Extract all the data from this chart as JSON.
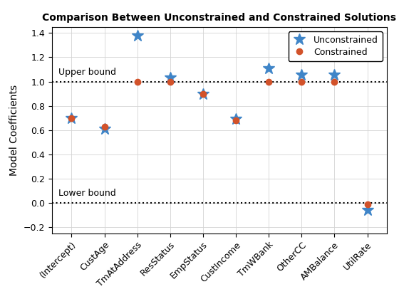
{
  "title": "Comparison Between Unconstrained and Constrained Solutions",
  "ylabel": "Model Coefficients",
  "categories": [
    "(Intercept)",
    "CustAge",
    "TmAtAddress",
    "ResStatus",
    "EmpStatus",
    "CustIncome",
    "TmWBank",
    "OtherCC",
    "AMBalance",
    "UtilRate"
  ],
  "unconstrained": [
    0.7,
    0.61,
    1.38,
    1.035,
    0.9,
    0.695,
    1.11,
    1.055,
    1.055,
    -0.06
  ],
  "constrained": [
    0.7,
    0.63,
    1.0,
    1.0,
    0.9,
    0.68,
    1.0,
    1.0,
    1.0,
    -0.01
  ],
  "upper_bound": 1.0,
  "lower_bound": 0.0,
  "ylim": [
    -0.25,
    1.45
  ],
  "yticks": [
    -0.2,
    0.0,
    0.2,
    0.4,
    0.6,
    0.8,
    1.0,
    1.2,
    1.4
  ],
  "unconstrained_color": "#3F85C8",
  "constrained_color": "#D2522A",
  "upper_bound_label": "Upper bound",
  "lower_bound_label": "Lower bound",
  "bg_color": "#FFFFFF",
  "grid_color": "#D3D3D3"
}
